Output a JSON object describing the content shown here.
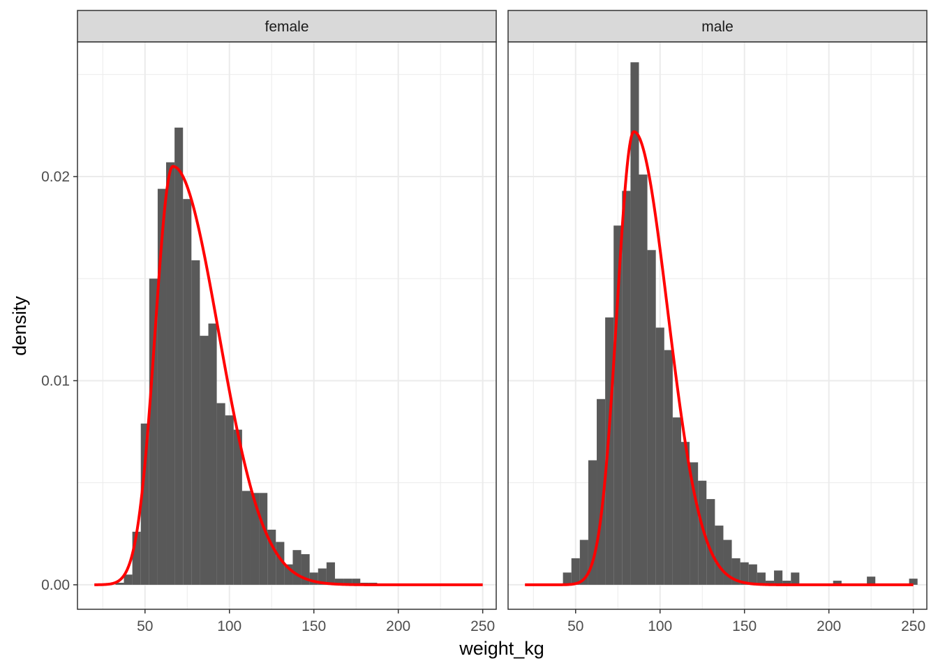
{
  "chart_data": {
    "type": "histogram-faceted",
    "xlabel": "weight_kg",
    "ylabel": "density",
    "xlim": [
      10,
      258
    ],
    "ylim": [
      -0.0012,
      0.0266
    ],
    "x_ticks": [
      50,
      100,
      150,
      200,
      250
    ],
    "y_ticks": [
      0.0,
      0.01,
      0.02
    ],
    "y_tick_labels": [
      "0.00",
      "0.01",
      "0.02"
    ],
    "grid": true,
    "bin_width": 5,
    "colors": {
      "bars": "#595959",
      "curve": "#ff0000",
      "grid": "#ebebeb",
      "strip": "#d9d9d9",
      "border": "#333333"
    },
    "facets": [
      {
        "name": "female",
        "bins": [
          {
            "x": 35,
            "density": 0.0001
          },
          {
            "x": 40,
            "density": 0.0005
          },
          {
            "x": 45,
            "density": 0.0026
          },
          {
            "x": 50,
            "density": 0.0079
          },
          {
            "x": 55,
            "density": 0.015
          },
          {
            "x": 60,
            "density": 0.0194
          },
          {
            "x": 65,
            "density": 0.0207
          },
          {
            "x": 70,
            "density": 0.0224
          },
          {
            "x": 75,
            "density": 0.0189
          },
          {
            "x": 80,
            "density": 0.0159
          },
          {
            "x": 85,
            "density": 0.0122
          },
          {
            "x": 90,
            "density": 0.0128
          },
          {
            "x": 95,
            "density": 0.0089
          },
          {
            "x": 100,
            "density": 0.0083
          },
          {
            "x": 105,
            "density": 0.0076
          },
          {
            "x": 110,
            "density": 0.0046
          },
          {
            "x": 115,
            "density": 0.0045
          },
          {
            "x": 120,
            "density": 0.0045
          },
          {
            "x": 125,
            "density": 0.0027
          },
          {
            "x": 130,
            "density": 0.0021
          },
          {
            "x": 135,
            "density": 0.001
          },
          {
            "x": 140,
            "density": 0.0017
          },
          {
            "x": 145,
            "density": 0.0015
          },
          {
            "x": 150,
            "density": 0.0006
          },
          {
            "x": 155,
            "density": 0.0008
          },
          {
            "x": 160,
            "density": 0.0011
          },
          {
            "x": 165,
            "density": 0.0003
          },
          {
            "x": 170,
            "density": 0.0003
          },
          {
            "x": 175,
            "density": 0.0003
          },
          {
            "x": 180,
            "density": 0.0001
          },
          {
            "x": 185,
            "density": 0.0001
          }
        ],
        "curve": {
          "mode": 66.5,
          "peak": 0.0205,
          "sigma_left": 10.5,
          "sigma_right": 27.0
        }
      },
      {
        "name": "male",
        "bins": [
          {
            "x": 45,
            "density": 0.0006
          },
          {
            "x": 50,
            "density": 0.0013
          },
          {
            "x": 55,
            "density": 0.0022
          },
          {
            "x": 60,
            "density": 0.0061
          },
          {
            "x": 65,
            "density": 0.0091
          },
          {
            "x": 70,
            "density": 0.0131
          },
          {
            "x": 75,
            "density": 0.0176
          },
          {
            "x": 80,
            "density": 0.0193
          },
          {
            "x": 85,
            "density": 0.0256
          },
          {
            "x": 90,
            "density": 0.0201
          },
          {
            "x": 95,
            "density": 0.0164
          },
          {
            "x": 100,
            "density": 0.0126
          },
          {
            "x": 105,
            "density": 0.0115
          },
          {
            "x": 110,
            "density": 0.0082
          },
          {
            "x": 115,
            "density": 0.007
          },
          {
            "x": 120,
            "density": 0.006
          },
          {
            "x": 125,
            "density": 0.0051
          },
          {
            "x": 130,
            "density": 0.0042
          },
          {
            "x": 135,
            "density": 0.0029
          },
          {
            "x": 140,
            "density": 0.0022
          },
          {
            "x": 145,
            "density": 0.0013
          },
          {
            "x": 150,
            "density": 0.0011
          },
          {
            "x": 155,
            "density": 0.001
          },
          {
            "x": 160,
            "density": 0.0006
          },
          {
            "x": 165,
            "density": 0.0002
          },
          {
            "x": 170,
            "density": 0.0007
          },
          {
            "x": 175,
            "density": 0.0002
          },
          {
            "x": 180,
            "density": 0.0006
          },
          {
            "x": 205,
            "density": 0.0002
          },
          {
            "x": 225,
            "density": 0.0004
          },
          {
            "x": 250,
            "density": 0.0003
          }
        ],
        "curve": {
          "mode": 84.5,
          "peak": 0.0222,
          "sigma_left": 10.0,
          "sigma_right": 20.0
        }
      }
    ]
  }
}
